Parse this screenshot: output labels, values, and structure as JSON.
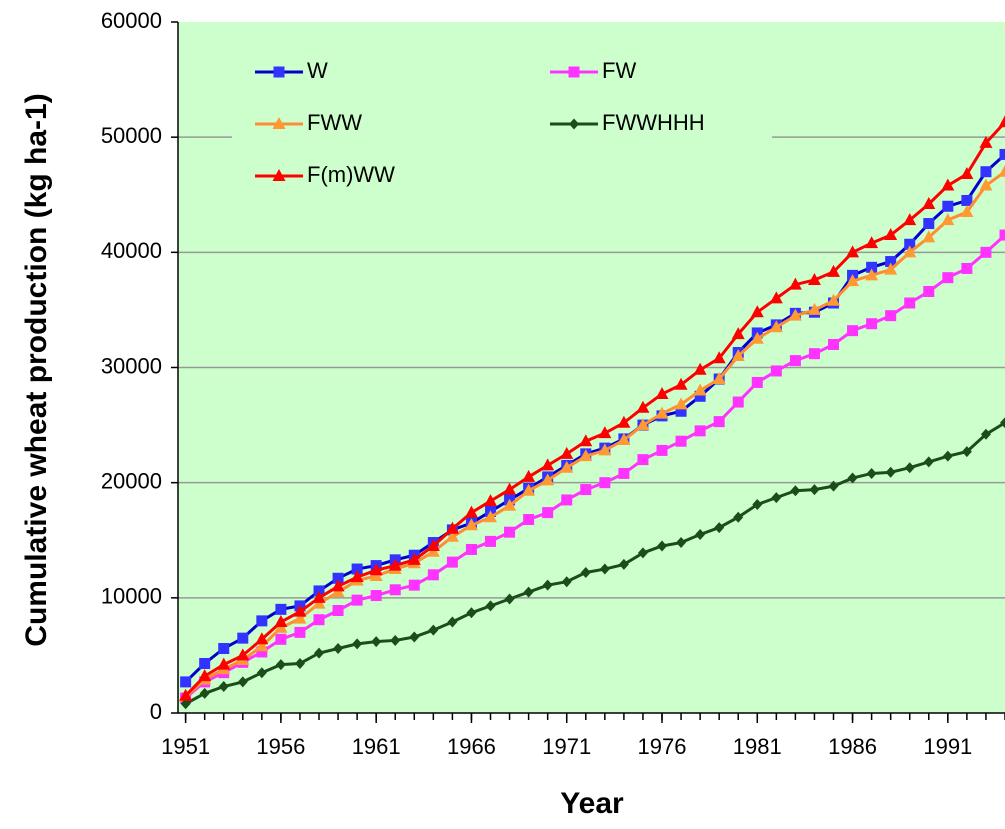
{
  "chart_data": {
    "type": "line",
    "xlabel": "Year",
    "ylabel": "Cumulative wheat production (kg ha-1)",
    "x": [
      1951,
      1952,
      1953,
      1954,
      1955,
      1956,
      1957,
      1958,
      1959,
      1960,
      1961,
      1962,
      1963,
      1964,
      1965,
      1966,
      1967,
      1968,
      1969,
      1970,
      1971,
      1972,
      1973,
      1974,
      1975,
      1976,
      1977,
      1978,
      1979,
      1980,
      1981,
      1982,
      1983,
      1984,
      1985,
      1986,
      1987,
      1988,
      1989,
      1990,
      1991,
      1992,
      1993,
      1994
    ],
    "series": [
      {
        "name": "W",
        "color": "#0000cc",
        "marker_color": "#3333ff",
        "marker": "square",
        "values": [
          2700,
          4300,
          5600,
          6500,
          8000,
          9000,
          9300,
          10600,
          11700,
          12500,
          12800,
          13300,
          13700,
          14800,
          15900,
          16500,
          17500,
          18500,
          19500,
          20500,
          21500,
          22500,
          23000,
          23800,
          25000,
          25800,
          26200,
          27500,
          29000,
          31300,
          33000,
          33700,
          34700,
          34800,
          35600,
          38000,
          38700,
          39200,
          40700,
          42500,
          44000,
          44500,
          47000,
          48500
        ]
      },
      {
        "name": "FW",
        "color": "#ff33ff",
        "marker_color": "#ff33ff",
        "marker": "square",
        "values": [
          1300,
          2700,
          3500,
          4400,
          5300,
          6400,
          7000,
          8100,
          8900,
          9800,
          10200,
          10700,
          11100,
          12000,
          13100,
          14200,
          14900,
          15700,
          16800,
          17400,
          18500,
          19400,
          20000,
          20800,
          22000,
          22800,
          23600,
          24500,
          25300,
          27000,
          28700,
          29700,
          30600,
          31200,
          32000,
          33200,
          33800,
          34500,
          35600,
          36600,
          37800,
          38600,
          40000,
          41500
        ]
      },
      {
        "name": "FWW",
        "color": "#ff8c33",
        "marker_color": "#ff9933",
        "marker": "triangle",
        "values": [
          1400,
          2900,
          3800,
          4600,
          5800,
          7400,
          8200,
          9500,
          10500,
          11500,
          11900,
          12500,
          13000,
          14000,
          15300,
          16300,
          17000,
          18000,
          19300,
          20200,
          21300,
          22300,
          22800,
          23700,
          25000,
          26000,
          26800,
          28000,
          29000,
          31000,
          32500,
          33500,
          34500,
          35000,
          35800,
          37500,
          38000,
          38500,
          40000,
          41300,
          42800,
          43500,
          45800,
          47000
        ]
      },
      {
        "name": "FWWHHH",
        "color": "#1a4d1a",
        "marker_color": "#1a4d1a",
        "marker": "diamond",
        "values": [
          800,
          1700,
          2300,
          2700,
          3500,
          4200,
          4300,
          5200,
          5600,
          6000,
          6200,
          6300,
          6600,
          7200,
          7900,
          8700,
          9300,
          9900,
          10500,
          11100,
          11400,
          12200,
          12500,
          12900,
          13900,
          14500,
          14800,
          15500,
          16100,
          17000,
          18100,
          18700,
          19300,
          19400,
          19700,
          20400,
          20800,
          20900,
          21300,
          21800,
          22300,
          22700,
          24200,
          25200
        ]
      },
      {
        "name": "F(m)WW",
        "color": "#ff0000",
        "marker_color": "#ff0000",
        "marker": "triangle",
        "values": [
          1500,
          3200,
          4200,
          5000,
          6400,
          7900,
          8800,
          10000,
          11000,
          11800,
          12400,
          12800,
          13300,
          14500,
          16000,
          17400,
          18400,
          19400,
          20500,
          21500,
          22500,
          23600,
          24300,
          25200,
          26500,
          27700,
          28500,
          29800,
          30800,
          32900,
          34800,
          36000,
          37200,
          37600,
          38300,
          40000,
          40800,
          41500,
          42800,
          44200,
          45800,
          46800,
          49500,
          51300
        ]
      }
    ],
    "xlim": [
      1950.6,
      1994
    ],
    "xticks": [
      1951,
      1956,
      1961,
      1966,
      1971,
      1976,
      1981,
      1986,
      1991
    ],
    "ylim": [
      0,
      60000
    ],
    "yticks": [
      0,
      10000,
      20000,
      30000,
      40000,
      50000,
      60000
    ],
    "grid": true,
    "plot_background": "#ccffcc",
    "legend": "upper-left"
  }
}
